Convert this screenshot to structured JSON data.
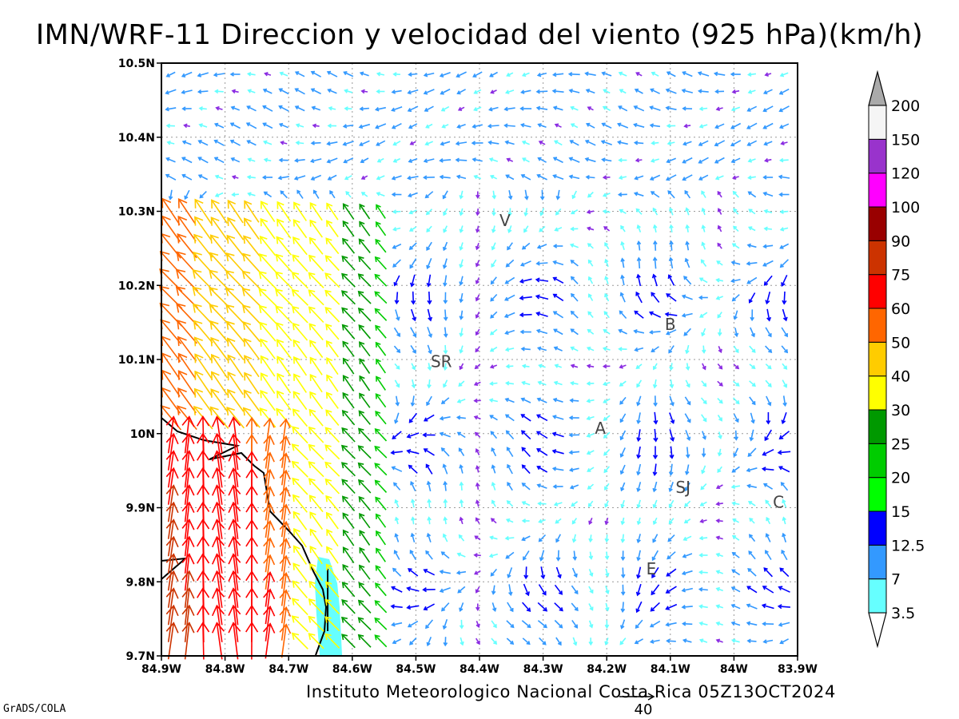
{
  "title": "IMN/WRF-11 Direccion y velocidad del viento (925 hPa)(km/h)",
  "footer": "Instituto Meteorologico Nacional Costa Rica 05Z13OCT2024",
  "credit": "GrADS/COLA",
  "reference_vector": {
    "label": "40"
  },
  "map": {
    "lon_range": [
      -84.9,
      -83.9
    ],
    "lat_range": [
      9.7,
      10.5
    ],
    "x_ticks": [
      {
        "value": -84.9,
        "label": "84.9W"
      },
      {
        "value": -84.8,
        "label": "84.8W"
      },
      {
        "value": -84.7,
        "label": "84.7W"
      },
      {
        "value": -84.6,
        "label": "84.6W"
      },
      {
        "value": -84.5,
        "label": "84.5W"
      },
      {
        "value": -84.4,
        "label": "84.4W"
      },
      {
        "value": -84.3,
        "label": "84.3W"
      },
      {
        "value": -84.2,
        "label": "84.2W"
      },
      {
        "value": -84.1,
        "label": "84.1W"
      },
      {
        "value": -84.0,
        "label": "84W"
      },
      {
        "value": -83.9,
        "label": "83.9W"
      }
    ],
    "y_ticks": [
      {
        "value": 10.5,
        "label": "10.5N"
      },
      {
        "value": 10.4,
        "label": "10.4N"
      },
      {
        "value": 10.3,
        "label": "10.3N"
      },
      {
        "value": 10.2,
        "label": "10.2N"
      },
      {
        "value": 10.1,
        "label": "10.1N"
      },
      {
        "value": 10.0,
        "label": "10N"
      },
      {
        "value": 9.9,
        "label": "9.9N"
      },
      {
        "value": 9.8,
        "label": "9.8N"
      },
      {
        "value": 9.7,
        "label": "9.7N"
      }
    ],
    "grid": true,
    "cities": [
      {
        "label": "V",
        "lon": -84.36,
        "lat": 10.28
      },
      {
        "label": "B",
        "lon": -84.1,
        "lat": 10.14
      },
      {
        "label": "SR",
        "lon": -84.46,
        "lat": 10.09
      },
      {
        "label": "A",
        "lon": -84.21,
        "lat": 10.0
      },
      {
        "label": "SJ",
        "lon": -84.08,
        "lat": 9.92
      },
      {
        "label": "C",
        "lon": -83.93,
        "lat": 9.9
      },
      {
        "label": "E",
        "lon": -84.13,
        "lat": 9.81
      }
    ]
  },
  "colorbar": {
    "levels": [
      "3.5",
      "7",
      "12.5",
      "15",
      "20",
      "25",
      "30",
      "40",
      "50",
      "60",
      "75",
      "90",
      "100",
      "120",
      "150",
      "200"
    ],
    "colors": [
      "#66ffff",
      "#3399ff",
      "#0000ff",
      "#00ff00",
      "#00cc00",
      "#009900",
      "#ffff00",
      "#ffcc00",
      "#ff6600",
      "#ff0000",
      "#cc3300",
      "#990000",
      "#ff00ff",
      "#9933cc",
      "#f5f5f5",
      "#aaaaaa"
    ]
  },
  "colors": {
    "below_3_5": "#8a2be2",
    "coastline": "#000000",
    "water": "#66ffff"
  }
}
